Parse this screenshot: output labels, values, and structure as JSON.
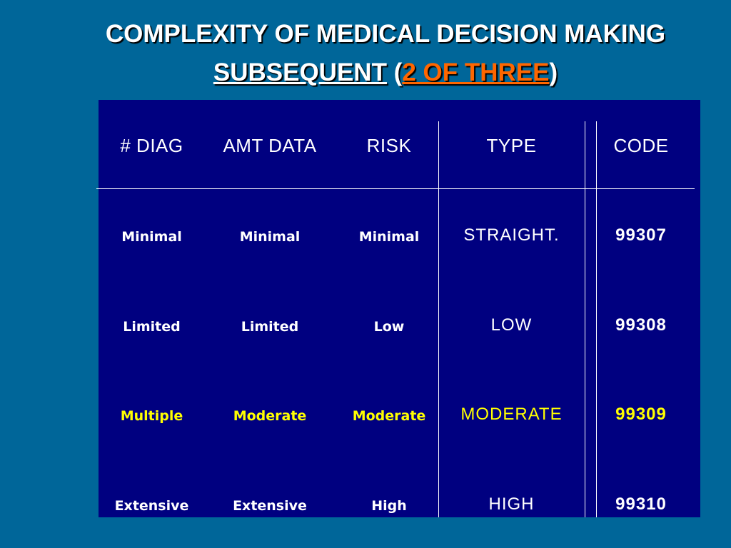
{
  "slide": {
    "title_line1": "COMPLEXITY OF MEDICAL DECISION MAKING",
    "title_line2_part1": "SUBSEQUENT",
    "title_line2_paren_open": " (",
    "title_line2_part2": "2 OF THREE",
    "title_line2_paren_close": ")"
  },
  "table": {
    "headers": [
      "# DIAG",
      "AMT DATA",
      "RISK",
      "TYPE",
      "CODE"
    ],
    "rows": [
      [
        "Minimal",
        "Minimal",
        "Minimal",
        "STRAIGHT.",
        "99307"
      ],
      [
        "Limited",
        "Limited",
        "Low",
        "LOW",
        "99308"
      ],
      [
        "Multiple",
        "Moderate",
        "Moderate",
        "MODERATE",
        "99309"
      ],
      [
        "Extensive",
        "Extensive",
        "High",
        "HIGH",
        "99310"
      ]
    ]
  },
  "colors": {
    "background": "#006699",
    "table_background": "#000080",
    "text": "#ffffff",
    "highlight_row": "#ffff00",
    "title_accent": "#ff6600"
  }
}
